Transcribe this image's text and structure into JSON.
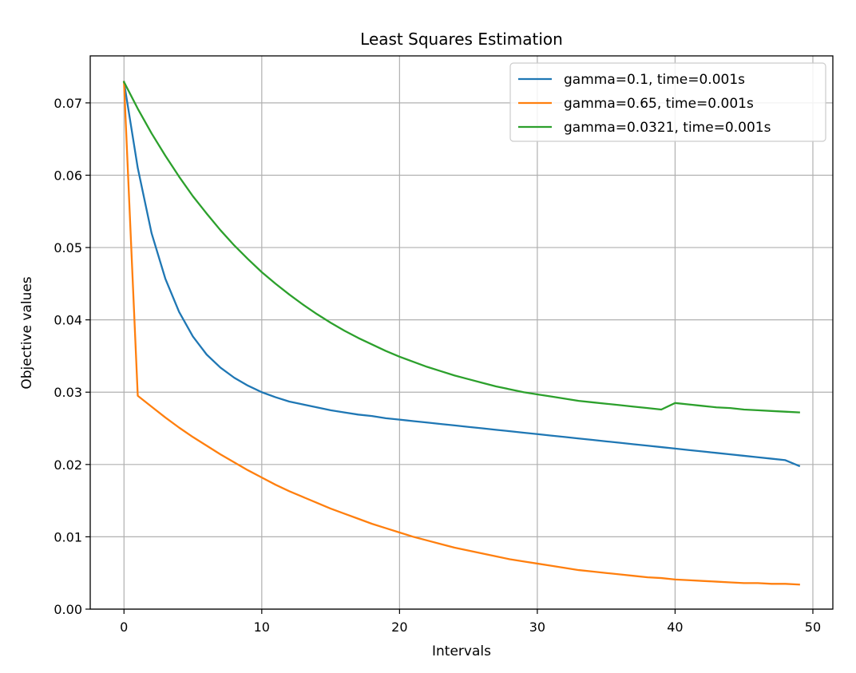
{
  "chart_data": {
    "type": "line",
    "title": "Least Squares Estimation",
    "xlabel": "Intervals",
    "ylabel": "Objective values",
    "xlim": [
      -2.45,
      51.45
    ],
    "ylim": [
      0.0,
      0.0765
    ],
    "xticks": [
      0,
      10,
      20,
      30,
      40,
      50
    ],
    "xtick_labels": [
      "0",
      "10",
      "20",
      "30",
      "40",
      "50"
    ],
    "yticks": [
      0.0,
      0.01,
      0.02,
      0.03,
      0.04,
      0.05,
      0.06,
      0.07
    ],
    "ytick_labels": [
      "0.00",
      "0.01",
      "0.02",
      "0.03",
      "0.04",
      "0.05",
      "0.06",
      "0.07"
    ],
    "grid": true,
    "legend_position": "top-right",
    "x": [
      0,
      1,
      2,
      3,
      4,
      5,
      6,
      7,
      8,
      9,
      10,
      11,
      12,
      13,
      14,
      15,
      16,
      17,
      18,
      19,
      20,
      21,
      22,
      23,
      24,
      25,
      26,
      27,
      28,
      29,
      30,
      31,
      32,
      33,
      34,
      35,
      36,
      37,
      38,
      39,
      40,
      41,
      42,
      43,
      44,
      45,
      46,
      47,
      48,
      49
    ],
    "series": [
      {
        "name": "gamma=0.1, time=0.001s",
        "color": "#1f77b4",
        "values": [
          0.0729,
          0.061,
          0.052,
          0.0457,
          0.0411,
          0.0377,
          0.0352,
          0.0334,
          0.032,
          0.0309,
          0.03,
          0.0293,
          0.0287,
          0.0283,
          0.0279,
          0.0275,
          0.0272,
          0.0269,
          0.0267,
          0.0264,
          0.0262,
          0.026,
          0.0258,
          0.0256,
          0.0254,
          0.0252,
          0.025,
          0.0248,
          0.0246,
          0.0244,
          0.0242,
          0.024,
          0.0238,
          0.0236,
          0.0234,
          0.0232,
          0.023,
          0.0228,
          0.0226,
          0.0224,
          0.0222,
          0.022,
          0.0218,
          0.0216,
          0.0214,
          0.0212,
          0.021,
          0.0208,
          0.0206,
          0.0198
        ]
      },
      {
        "name": "gamma=0.65, time=0.001s",
        "color": "#ff7f0e",
        "values": [
          0.0729,
          0.0295,
          0.028,
          0.0265,
          0.0251,
          0.0238,
          0.0226,
          0.0214,
          0.0203,
          0.0192,
          0.0182,
          0.0172,
          0.0163,
          0.0155,
          0.0147,
          0.0139,
          0.0132,
          0.0125,
          0.0118,
          0.0112,
          0.0106,
          0.01,
          0.0095,
          0.009,
          0.0085,
          0.0081,
          0.0077,
          0.0073,
          0.0069,
          0.0066,
          0.0063,
          0.006,
          0.0057,
          0.0054,
          0.0052,
          0.005,
          0.0048,
          0.0046,
          0.0044,
          0.0043,
          0.0041,
          0.004,
          0.0039,
          0.0038,
          0.0037,
          0.0036,
          0.0036,
          0.0035,
          0.0035,
          0.0034
        ]
      },
      {
        "name": "gamma=0.0321, time=0.001s",
        "color": "#2ca02c",
        "values": [
          0.0729,
          0.0692,
          0.0658,
          0.0627,
          0.0598,
          0.0571,
          0.0547,
          0.0524,
          0.0503,
          0.0484,
          0.0466,
          0.045,
          0.0435,
          0.0421,
          0.0408,
          0.0396,
          0.0385,
          0.0375,
          0.0366,
          0.0357,
          0.0349,
          0.0342,
          0.0335,
          0.0329,
          0.0323,
          0.0318,
          0.0313,
          0.0308,
          0.0304,
          0.03,
          0.0297,
          0.0294,
          0.0291,
          0.0288,
          0.0286,
          0.0284,
          0.0282,
          0.028,
          0.0278,
          0.0276,
          0.0285,
          0.0283,
          0.0281,
          0.0279,
          0.0278,
          0.0276,
          0.0275,
          0.0274,
          0.0273,
          0.0272
        ]
      }
    ]
  }
}
